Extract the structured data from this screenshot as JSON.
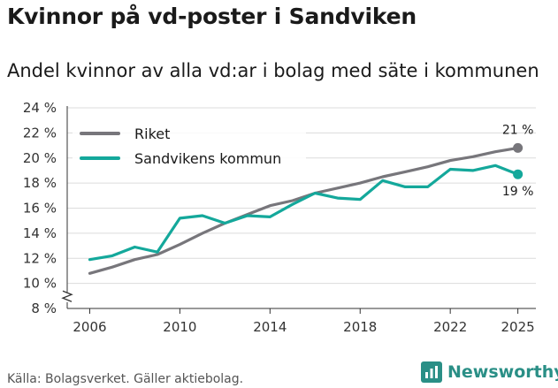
{
  "header": {
    "title": "Kvinnor på vd-poster i Sandviken",
    "subtitle": "Andel kvinnor av alla vd:ar i bolag med säte i kommunen"
  },
  "footer": {
    "source": "Källa: Bolagsverket. Gäller aktiebolag.",
    "brand": "Newsworthy"
  },
  "colors": {
    "riket": "#77767b",
    "kommun": "#14a89b",
    "axis": "#333333",
    "brand": "#2a8f86"
  },
  "chart_data": {
    "type": "line",
    "title": "Kvinnor på vd-poster i Sandviken",
    "subtitle": "Andel kvinnor av alla vd:ar i bolag med säte i kommunen",
    "xlabel": "",
    "ylabel": "",
    "x": [
      2006,
      2007,
      2008,
      2009,
      2010,
      2011,
      2012,
      2013,
      2014,
      2015,
      2016,
      2017,
      2018,
      2019,
      2020,
      2021,
      2022,
      2023,
      2024,
      2025
    ],
    "xticks": [
      2006,
      2010,
      2014,
      2018,
      2022,
      2025
    ],
    "xlim": [
      2005.0,
      2025.8
    ],
    "ylim": [
      8,
      24
    ],
    "yticks": [
      8,
      10,
      12,
      14,
      16,
      18,
      20,
      22,
      24
    ],
    "ytick_labels": [
      "8 %",
      "10 %",
      "12 %",
      "14 %",
      "16 %",
      "18 %",
      "20 %",
      "22 %",
      "24 %"
    ],
    "axis_break": true,
    "legend_position": "top-left",
    "series": [
      {
        "name": "Riket",
        "color": "#77767b",
        "values": [
          10.8,
          11.3,
          11.9,
          12.3,
          13.1,
          14.0,
          14.8,
          15.5,
          16.2,
          16.6,
          17.2,
          17.6,
          18.0,
          18.5,
          18.9,
          19.3,
          19.8,
          20.1,
          20.5,
          20.8
        ],
        "end_label": "21 %"
      },
      {
        "name": "Sandvikens kommun",
        "color": "#14a89b",
        "values": [
          11.9,
          12.2,
          12.9,
          12.5,
          15.2,
          15.4,
          14.8,
          15.4,
          15.3,
          16.3,
          17.2,
          16.8,
          16.7,
          18.2,
          17.7,
          17.7,
          19.1,
          19.0,
          19.4,
          18.7
        ],
        "end_label": "19 %"
      }
    ]
  }
}
